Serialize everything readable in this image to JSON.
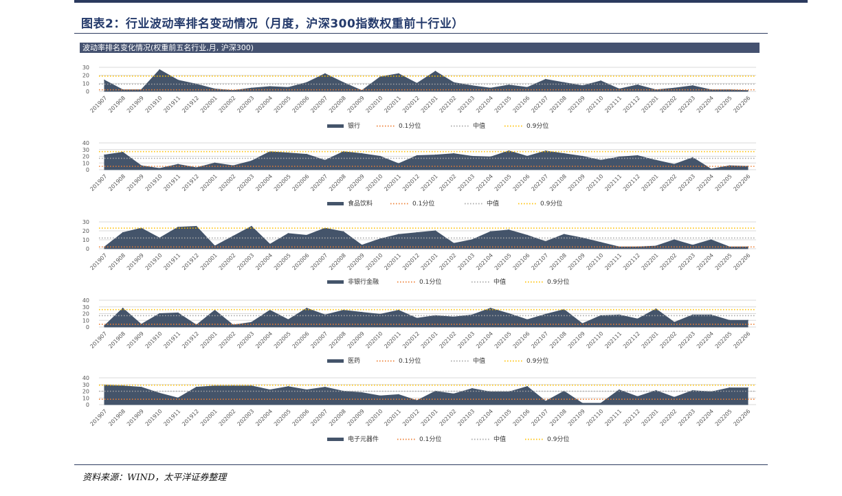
{
  "header": {
    "figure_title": "图表2：行业波动率排名变动情况（月度，沪深300指数权重前十行业）",
    "banner": "波动率排名变化情况(权重前五名行业,月, 沪深300)"
  },
  "footer": {
    "source": "资料来源：WIND，太平洋证券整理"
  },
  "colors": {
    "area": "#44546a",
    "p10": "#ed7d31",
    "median": "#a5a5a5",
    "p90": "#ffc000"
  },
  "legend_labels": {
    "p10": "0.1分位",
    "median": "中值",
    "p90": "0.9分位"
  },
  "months": [
    "201907",
    "201908",
    "201909",
    "201910",
    "201911",
    "201912",
    "202001",
    "202002",
    "202003",
    "202004",
    "202005",
    "202006",
    "202007",
    "202008",
    "202009",
    "202010",
    "202011",
    "202012",
    "202101",
    "202102",
    "202103",
    "202104",
    "202105",
    "202106",
    "202107",
    "202108",
    "202109",
    "202110",
    "202111",
    "202112",
    "202201",
    "202202",
    "202203",
    "202204",
    "202205",
    "202206"
  ],
  "chart_data": [
    {
      "type": "area",
      "series_name": "银行",
      "ylim": [
        0,
        30
      ],
      "yticks": [
        0,
        10,
        20,
        30
      ],
      "values": [
        14,
        2,
        2,
        27,
        14,
        9,
        3,
        1,
        4,
        6,
        5,
        11,
        22,
        11,
        1,
        18,
        22,
        10,
        25,
        11,
        7,
        4,
        8,
        5,
        15,
        11,
        7,
        13,
        3,
        8,
        2,
        4,
        7,
        2,
        2,
        1
      ],
      "p10": 2,
      "median": 9,
      "p90": 19
    },
    {
      "type": "area",
      "series_name": "食品饮料",
      "ylim": [
        0,
        40
      ],
      "yticks": [
        0,
        10,
        20,
        30,
        40
      ],
      "values": [
        22,
        26,
        6,
        2,
        8,
        3,
        10,
        6,
        13,
        27,
        25,
        23,
        14,
        27,
        24,
        20,
        9,
        21,
        22,
        24,
        20,
        19,
        28,
        20,
        28,
        24,
        20,
        14,
        19,
        21,
        14,
        8,
        18,
        1,
        6,
        5
      ],
      "p10": 5,
      "median": 17,
      "p90": 27
    },
    {
      "type": "area",
      "series_name": "非银行金融",
      "ylim": [
        0,
        30
      ],
      "yticks": [
        0,
        10,
        20,
        30
      ],
      "values": [
        2,
        18,
        23,
        12,
        24,
        25,
        3,
        14,
        25,
        5,
        17,
        15,
        23,
        19,
        4,
        11,
        16,
        18,
        20,
        6,
        10,
        19,
        21,
        15,
        8,
        16,
        12,
        7,
        2,
        2,
        3,
        10,
        4,
        10,
        2,
        2
      ],
      "p10": 2,
      "median": 12,
      "p90": 23
    },
    {
      "type": "area",
      "series_name": "医药",
      "ylim": [
        0,
        40
      ],
      "yticks": [
        0,
        10,
        20,
        30,
        40
      ],
      "values": [
        2,
        28,
        4,
        20,
        21,
        3,
        25,
        3,
        7,
        25,
        11,
        28,
        18,
        25,
        22,
        19,
        25,
        13,
        17,
        15,
        18,
        28,
        20,
        11,
        19,
        26,
        5,
        17,
        18,
        12,
        27,
        7,
        18,
        18,
        10,
        10
      ],
      "p10": 4,
      "median": 17,
      "p90": 26
    },
    {
      "type": "area",
      "series_name": "电子元器件",
      "ylim": [
        0,
        40
      ],
      "yticks": [
        0,
        10,
        20,
        30,
        40
      ],
      "values": [
        29,
        28,
        26,
        17,
        10,
        26,
        28,
        28,
        28,
        22,
        27,
        22,
        26,
        20,
        18,
        13,
        15,
        6,
        20,
        16,
        24,
        19,
        19,
        27,
        5,
        20,
        2,
        2,
        22,
        12,
        21,
        11,
        21,
        19,
        25,
        25
      ],
      "p10": 8,
      "median": 20,
      "p90": 29
    }
  ]
}
